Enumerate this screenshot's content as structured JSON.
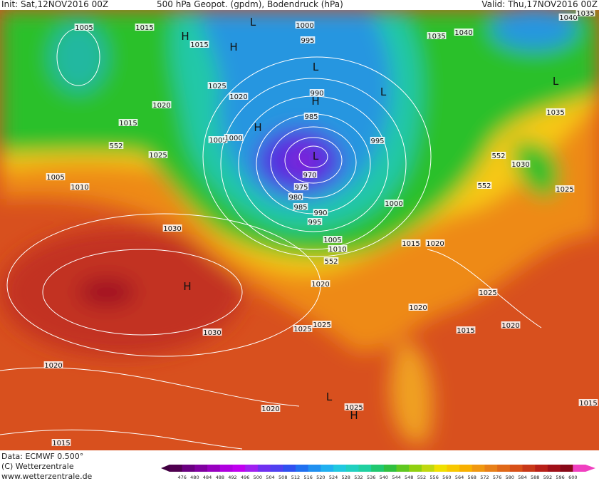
{
  "header": {
    "init": "Init: Sat,12NOV2016 00Z",
    "title": "500 hPa Geopot. (gpdm), Bodendruck (hPa)",
    "valid": "Valid: Thu,17NOV2016 00Z"
  },
  "map": {
    "labels": [
      "1005",
      "1015",
      "H",
      "1015",
      "H",
      "L",
      "1000",
      "995",
      "L",
      "1035",
      "1040",
      "1040",
      "1035",
      "1025",
      "1020",
      "990",
      "H",
      "L",
      "L",
      "1020",
      "1015",
      "1035",
      "985",
      "H",
      "1005",
      "1000",
      "995",
      "552",
      "1025",
      "L",
      "552",
      "1030",
      "1005",
      "970",
      "975",
      "1010",
      "552",
      "1025",
      "980",
      "1000",
      "985",
      "990",
      "995",
      "1030",
      "1005",
      "1010",
      "1015",
      "1020",
      "552",
      "H",
      "1020",
      "1025",
      "1020",
      "1025",
      "1025",
      "1015",
      "1020",
      "1030",
      "1020",
      "L",
      "1025",
      "H",
      "1020",
      "1015",
      "1015"
    ]
  },
  "footer": {
    "source": "Data: ECMWF  0.500°",
    "copyright": "(C) Wetterzentrale",
    "url": "www.wetterzentrale.de"
  },
  "colorbar": {
    "labels": [
      476,
      480,
      484,
      488,
      492,
      496,
      500,
      504,
      508,
      512,
      516,
      520,
      524,
      528,
      532,
      536,
      540,
      544,
      548,
      552,
      556,
      560,
      564,
      568,
      572,
      576,
      580,
      584,
      588,
      592,
      596,
      600
    ]
  }
}
